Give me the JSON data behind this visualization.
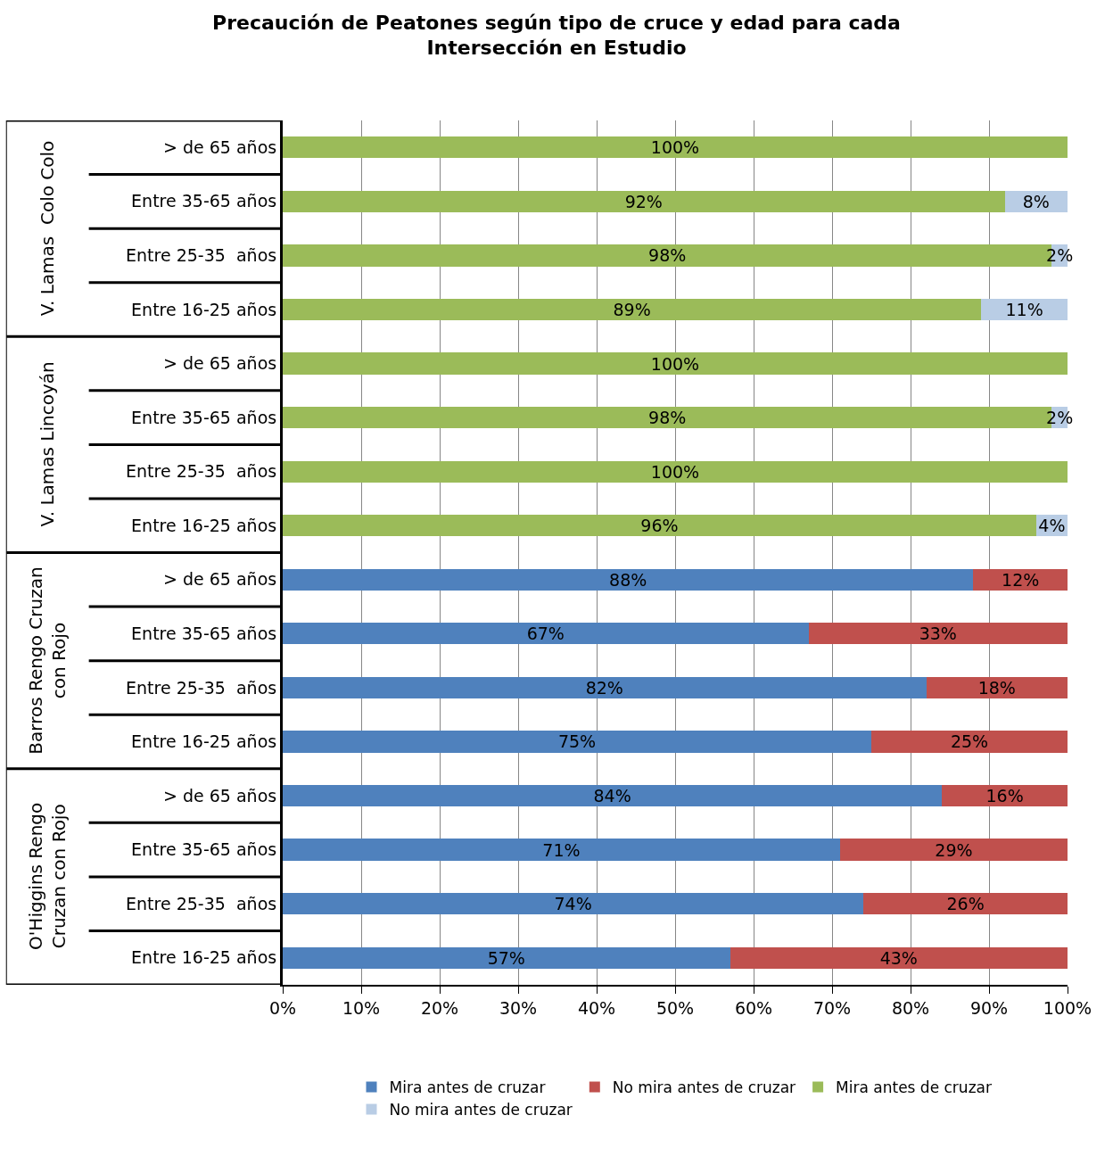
{
  "chart_data": {
    "type": "bar",
    "orientation": "horizontal",
    "stacked": true,
    "title": "Precaución de Peatones según tipo de cruce y edad para cada\nIntersección en Estudio",
    "categories": [
      "> de 65 años",
      "Entre 35-65 años",
      "Entre 25-35  años",
      "Entre 16-25 años",
      "> de 65 años",
      "Entre 35-65 años",
      "Entre 25-35  años",
      "Entre 16-25 años",
      "> de 65 años",
      "Entre 35-65 años",
      "Entre 25-35  años",
      "Entre 16-25 años",
      "> de 65 años",
      "Entre 35-65 años",
      "Entre 25-35  años",
      "Entre 16-25 años"
    ],
    "series": [
      {
        "name": "Mira antes de cruzar",
        "color": "#4f81bd",
        "values": [
          null,
          null,
          null,
          null,
          null,
          null,
          null,
          null,
          88,
          67,
          82,
          75,
          84,
          71,
          74,
          57
        ],
        "value_labels": [
          null,
          null,
          null,
          null,
          null,
          null,
          null,
          null,
          "88%",
          "67%",
          "82%",
          "75%",
          "84%",
          "71%",
          "74%",
          "57%"
        ]
      },
      {
        "name": "No mira antes de cruzar",
        "color": "#c0504d",
        "values": [
          null,
          null,
          null,
          null,
          null,
          null,
          null,
          null,
          12,
          33,
          18,
          25,
          16,
          29,
          26,
          43
        ],
        "value_labels": [
          null,
          null,
          null,
          null,
          null,
          null,
          null,
          null,
          "12%",
          "33%",
          "18%",
          "25%",
          "16%",
          "29%",
          "26%",
          "43%"
        ]
      },
      {
        "name": "Mira antes de cruzar",
        "color": "#9bbb59",
        "values": [
          100,
          92,
          98,
          89,
          100,
          98,
          100,
          96,
          null,
          null,
          null,
          null,
          null,
          null,
          null,
          null
        ],
        "value_labels": [
          "100%",
          "92%",
          "98%",
          "89%",
          "100%",
          "98%",
          "100%",
          "96%",
          null,
          null,
          null,
          null,
          null,
          null,
          null,
          null
        ]
      },
      {
        "name": "No mira antes de cruzar",
        "color": "#b9cde5",
        "values": [
          null,
          8,
          2,
          11,
          null,
          2,
          null,
          4,
          null,
          null,
          null,
          null,
          null,
          null,
          null,
          null
        ],
        "value_labels": [
          null,
          "8%",
          "2%",
          "11%",
          null,
          "2%",
          null,
          "4%",
          null,
          null,
          null,
          null,
          null,
          null,
          null,
          null
        ]
      }
    ],
    "annotations": [
      "V. Lamas  Colo Colo",
      "V. Lamas Lincoyán",
      "Barros Rengo Cruzan\ncon Rojo",
      "O'Higgins Rengo\nCruzan con Rojo"
    ],
    "xlim": [
      0,
      100
    ],
    "xticks": [
      {
        "value": 0,
        "label": "0%"
      },
      {
        "value": 10,
        "label": "10%"
      },
      {
        "value": 20,
        "label": "20%"
      },
      {
        "value": 30,
        "label": "30%"
      },
      {
        "value": 40,
        "label": "40%"
      },
      {
        "value": 50,
        "label": "50%"
      },
      {
        "value": 60,
        "label": "60%"
      },
      {
        "value": 70,
        "label": "70%"
      },
      {
        "value": 80,
        "label": "80%"
      },
      {
        "value": 90,
        "label": "90%"
      },
      {
        "value": 100,
        "label": "100%"
      }
    ],
    "grid": "x",
    "legend": "bottom"
  }
}
